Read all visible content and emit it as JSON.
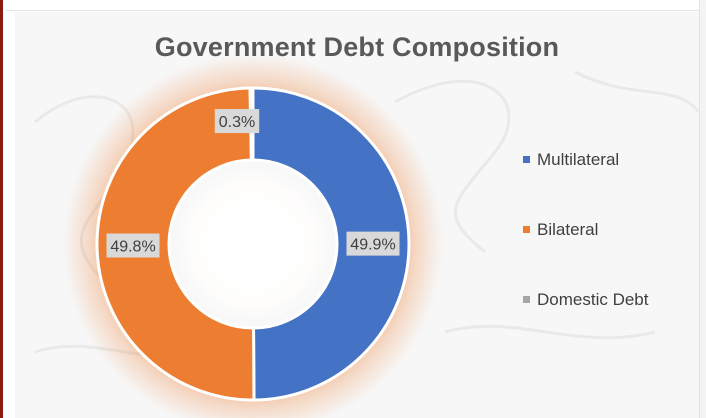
{
  "chart_data": {
    "type": "pie",
    "title": "Government Debt Composition",
    "categories": [
      "Multilateral",
      "Bilateral",
      "Domestic Debt"
    ],
    "values": [
      49.9,
      49.8,
      0.3
    ],
    "data_labels": [
      "49.9%",
      "49.8%",
      "0.3%"
    ],
    "colors": [
      "#4472c4",
      "#ed7d31",
      "#a5a5a5"
    ],
    "style": "doughnut",
    "legend_position": "right"
  }
}
